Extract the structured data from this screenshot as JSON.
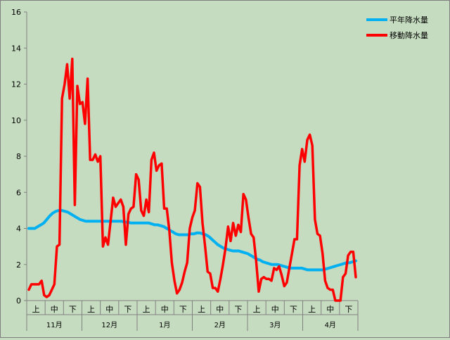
{
  "chart_data": {
    "type": "line",
    "title": "",
    "xlabel": "",
    "ylabel": "",
    "ylim": [
      0,
      16
    ],
    "y_ticks": [
      0,
      2,
      4,
      6,
      8,
      10,
      12,
      14,
      16
    ],
    "grid": false,
    "legend_position": "top-right",
    "plot_background": "#c6dcc0",
    "months": [
      "11月",
      "12月",
      "1月",
      "2月",
      "3月",
      "4月"
    ],
    "periods": [
      "上",
      "中",
      "下"
    ],
    "series": [
      {
        "name": "平年降水量",
        "color": "#00b0f0",
        "values": [
          4.0,
          4.0,
          4.0,
          4.1,
          4.2,
          4.3,
          4.5,
          4.7,
          4.85,
          4.95,
          5.0,
          5.0,
          4.95,
          4.9,
          4.8,
          4.7,
          4.6,
          4.5,
          4.45,
          4.4,
          4.4,
          4.4,
          4.4,
          4.4,
          4.4,
          4.4,
          4.4,
          4.4,
          4.4,
          4.4,
          4.4,
          4.4,
          4.35,
          4.35,
          4.3,
          4.3,
          4.3,
          4.3,
          4.3,
          4.3,
          4.3,
          4.25,
          4.2,
          4.2,
          4.15,
          4.1,
          4.0,
          3.9,
          3.8,
          3.7,
          3.65,
          3.65,
          3.65,
          3.65,
          3.7,
          3.7,
          3.75,
          3.75,
          3.7,
          3.65,
          3.55,
          3.4,
          3.25,
          3.1,
          3.0,
          2.9,
          2.85,
          2.8,
          2.75,
          2.75,
          2.75,
          2.7,
          2.65,
          2.6,
          2.5,
          2.4,
          2.3,
          2.25,
          2.15,
          2.1,
          2.05,
          2.0,
          2.0,
          2.0,
          1.95,
          1.9,
          1.85,
          1.8,
          1.8,
          1.8,
          1.8,
          1.8,
          1.75,
          1.7,
          1.7,
          1.7,
          1.7,
          1.7,
          1.7,
          1.75,
          1.8,
          1.85,
          1.9,
          1.95,
          2.0,
          2.05,
          2.1,
          2.1,
          2.15,
          2.2
        ]
      },
      {
        "name": "移動降水量",
        "color": "#ff0000",
        "values": [
          0.6,
          0.9,
          0.9,
          0.9,
          0.9,
          1.1,
          0.3,
          0.2,
          0.3,
          0.6,
          0.9,
          3.0,
          3.1,
          11.2,
          12.0,
          13.1,
          11.2,
          13.4,
          5.3,
          11.9,
          10.9,
          11.0,
          9.8,
          12.3,
          7.8,
          7.8,
          8.1,
          7.7,
          8.0,
          3.0,
          3.5,
          3.1,
          4.4,
          5.7,
          5.2,
          5.4,
          5.6,
          5.2,
          3.1,
          4.8,
          5.1,
          5.2,
          7.0,
          6.7,
          5.0,
          4.7,
          5.6,
          4.9,
          7.8,
          8.2,
          7.2,
          7.5,
          7.6,
          5.1,
          5.1,
          3.9,
          2.1,
          1.1,
          0.4,
          0.6,
          1.0,
          1.6,
          2.1,
          4.0,
          4.6,
          5.0,
          6.5,
          6.3,
          4.3,
          3.0,
          1.6,
          1.5,
          0.7,
          0.7,
          0.5,
          1.2,
          2.0,
          2.9,
          4.1,
          3.3,
          4.3,
          3.6,
          4.2,
          3.8,
          5.9,
          5.6,
          4.6,
          3.7,
          3.5,
          2.2,
          0.5,
          1.2,
          1.3,
          1.2,
          1.2,
          1.1,
          1.8,
          1.7,
          1.9,
          1.4,
          0.8,
          1.0,
          1.8,
          2.6,
          3.4,
          3.4,
          7.5,
          8.4,
          7.7,
          8.9,
          9.2,
          8.6,
          4.5,
          3.7,
          3.6,
          2.6,
          1.1,
          0.7,
          0.6,
          0.6,
          0.0,
          0.0,
          0.0,
          1.3,
          1.5,
          2.5,
          2.7,
          2.7,
          1.3
        ]
      }
    ]
  }
}
